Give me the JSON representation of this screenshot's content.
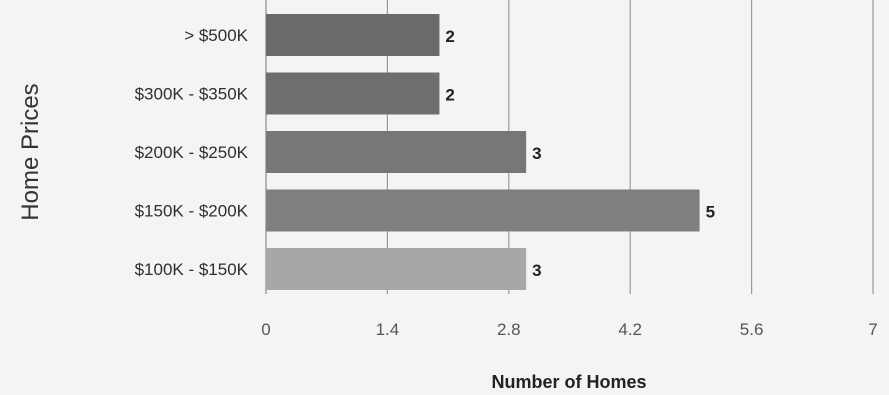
{
  "chart_data": {
    "type": "bar",
    "orientation": "horizontal",
    "title": "",
    "xlabel": "Number of Homes",
    "ylabel": "Home Prices",
    "categories": [
      "> $500K",
      "$300K - $350K",
      "$200K - $250K",
      "$150K - $200K",
      "$100K - $150K"
    ],
    "values": [
      2,
      2,
      3,
      5,
      3
    ],
    "value_labels": [
      "2",
      "2",
      "3",
      "5",
      "3"
    ],
    "xlim": [
      0,
      7
    ],
    "xticks": [
      0,
      1.4,
      2.8,
      4.2,
      5.6,
      7
    ],
    "xtick_labels": [
      "0",
      "1.4",
      "2.8",
      "4.2",
      "5.6",
      "7"
    ],
    "grid": true,
    "bar_colors": [
      "#6a6a6a",
      "#6e6e6e",
      "#777777",
      "#7f7f7f",
      "#a7a7a7"
    ],
    "gridline_color": "#9a9a9a",
    "label_color": "#2f2f2f"
  }
}
